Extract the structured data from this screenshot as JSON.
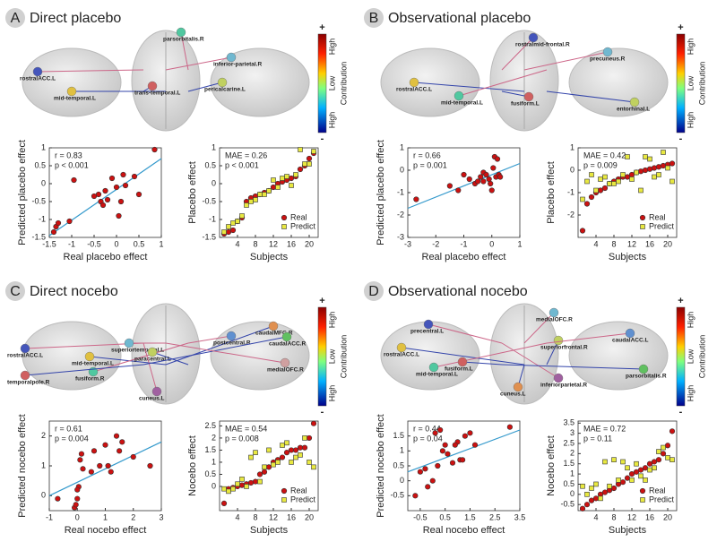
{
  "panels": [
    {
      "letter": "A",
      "title": "Direct placebo",
      "regions": [
        "rostralACC.L",
        "mid-temporal.L",
        "parsorbitalis.R",
        "trans-temporal.L",
        "inferior-parietal.R",
        "pericalcarine.L"
      ],
      "colorbar": {
        "plus": "+",
        "top": "High",
        "middle": "Low",
        "bottom": "High",
        "minus": "-",
        "label": "Contribution"
      }
    },
    {
      "letter": "B",
      "title": "Observational placebo",
      "regions": [
        "rostralmid-frontal.R",
        "rostralACC.L",
        "mid-temporal.L",
        "fusiform.L",
        "precuneus.R",
        "entorhinal.L"
      ],
      "colorbar": {
        "plus": "+",
        "top": "High",
        "middle": "Low",
        "bottom": "High",
        "minus": "-",
        "label": "Contribution"
      }
    },
    {
      "letter": "C",
      "title": "Direct nocebo",
      "regions": [
        "rostralACC.L",
        "mid-temporal.L",
        "fusiform.R",
        "temporalpole.R",
        "superiortemporal.L",
        "paracentral.L",
        "cuneus.L",
        "caudalMFG.R",
        "postcentral.R",
        "caudalACC.R",
        "medialOFC.R"
      ],
      "colorbar": {
        "plus": "+",
        "top": "High",
        "middle": "Low",
        "bottom": "High",
        "minus": "-",
        "label": "Contribution"
      }
    },
    {
      "letter": "D",
      "title": "Observational nocebo",
      "regions": [
        "precentral.L",
        "rostralACC.L",
        "mid-temporal.L",
        "fusiform.L",
        "medialOFC.R",
        "superiorfrontal.R",
        "inferiorparietal.R",
        "cuneus.L",
        "caudalACC.L",
        "parsorbitalis.R"
      ],
      "colorbar": {
        "plus": "+",
        "top": "High",
        "middle": "Low",
        "bottom": "High",
        "minus": "-",
        "label": "Contribution"
      }
    }
  ],
  "chart_data": [
    {
      "type": "scatter",
      "xlabel": "Real placebo effect",
      "ylabel": "Predicted placebo effect",
      "annotations": [
        "r = 0.83",
        "p < 0.001"
      ],
      "x": [
        -1.4,
        -1.35,
        -1.3,
        -1.05,
        -0.95,
        -0.5,
        -0.4,
        -0.35,
        -0.3,
        -0.25,
        -0.2,
        -0.1,
        0,
        0.05,
        0.1,
        0.15,
        0.2,
        0.4,
        0.5,
        0.85
      ],
      "series": [
        {
          "color": "#cc1111",
          "marker": "circle",
          "values": [
            -1.35,
            -1.2,
            -1.1,
            -1.05,
            0.1,
            -0.35,
            -0.3,
            -0.5,
            -0.6,
            -0.2,
            -0.45,
            0.15,
            -0.1,
            -0.9,
            -0.5,
            0.25,
            -0.05,
            0.2,
            -0.3,
            0.95
          ]
        }
      ],
      "fit_line": {
        "color": "#3399cc",
        "x": [
          -1.5,
          1
        ],
        "values": [
          -1.45,
          0.7
        ]
      },
      "xlim": [
        -1.5,
        1
      ],
      "xticks": [
        -1.5,
        -1,
        -0.5,
        0,
        0.5,
        1
      ],
      "ylim": [
        -1.5,
        1
      ],
      "yticks": [
        -1.5,
        -1,
        -0.5,
        0,
        0.5,
        1
      ]
    },
    {
      "type": "scatter",
      "xlabel": "Subjects",
      "ylabel": "Placebo effect",
      "annotations": [
        "MAE = 0.26",
        "p < 0.001"
      ],
      "legend": "lower right",
      "x": [
        1,
        2,
        3,
        4,
        5,
        6,
        7,
        8,
        9,
        10,
        11,
        12,
        13,
        14,
        15,
        16,
        17,
        18,
        19,
        20,
        21
      ],
      "series": [
        {
          "name": "Real",
          "color": "#cc1111",
          "marker": "circle",
          "values": [
            -1.4,
            -1.35,
            -1.3,
            -1.05,
            -0.95,
            -0.5,
            -0.4,
            -0.35,
            -0.3,
            -0.25,
            -0.2,
            -0.1,
            0,
            0.05,
            0.1,
            0.15,
            0.2,
            0.4,
            0.5,
            0.7,
            0.85
          ]
        },
        {
          "name": "Predict",
          "color": "#e8e840",
          "marker": "square",
          "values": [
            -1.35,
            -1.2,
            -1.1,
            -1.05,
            -0.9,
            -0.6,
            -0.5,
            -0.45,
            -0.3,
            -0.3,
            -0.2,
            0.1,
            -0.1,
            0.15,
            0.2,
            -0.05,
            0.25,
            0.95,
            0.55,
            0.55,
            0.9
          ]
        }
      ],
      "xlim": [
        0,
        22
      ],
      "xticks": [
        4,
        8,
        12,
        16,
        20
      ],
      "ylim": [
        -1.5,
        1
      ],
      "yticks": [
        -1.5,
        -1,
        -0.5,
        0,
        0.5,
        1
      ]
    },
    {
      "type": "scatter",
      "xlabel": "Real placebo effect",
      "ylabel": "Predicted placebo effect",
      "annotations": [
        "r = 0.66",
        "p = 0.001"
      ],
      "x": [
        -2.7,
        -1.5,
        -1.2,
        -1,
        -0.8,
        -0.6,
        -0.5,
        -0.4,
        -0.3,
        -0.2,
        -0.1,
        0,
        0.1,
        0.15,
        0.2,
        0.25,
        -0.3,
        0.05,
        -0.05,
        0.3
      ],
      "series": [
        {
          "color": "#cc1111",
          "marker": "circle",
          "values": [
            -1.3,
            -0.7,
            -0.9,
            -0.2,
            -0.4,
            -0.6,
            -0.5,
            -0.3,
            -0.1,
            -0.2,
            -0.4,
            -0.9,
            0.6,
            -0.3,
            0.5,
            -0.2,
            -0.5,
            0.1,
            -0.6,
            -0.3
          ]
        }
      ],
      "fit_line": {
        "color": "#3399cc",
        "x": [
          -3,
          1
        ],
        "values": [
          -1.7,
          0.3
        ]
      },
      "xlim": [
        -3,
        1
      ],
      "xticks": [
        -3,
        -2,
        -1,
        0,
        1
      ],
      "ylim": [
        -3,
        1
      ],
      "yticks": [
        -3,
        -2,
        -1,
        0,
        1
      ]
    },
    {
      "type": "scatter",
      "xlabel": "Subjects",
      "ylabel": "Placebo effect",
      "annotations": [
        "MAE = 0.42",
        "p = 0.009"
      ],
      "legend": "lower right",
      "x": [
        1,
        2,
        3,
        4,
        5,
        6,
        7,
        8,
        9,
        10,
        11,
        12,
        13,
        14,
        15,
        16,
        17,
        18,
        19,
        20,
        21
      ],
      "series": [
        {
          "name": "Real",
          "color": "#cc1111",
          "marker": "circle",
          "values": [
            -2.7,
            -1.5,
            -1.2,
            -1,
            -0.9,
            -0.8,
            -0.6,
            -0.5,
            -0.4,
            -0.3,
            -0.3,
            -0.2,
            -0.1,
            -0.05,
            0,
            0.05,
            0.1,
            0.15,
            0.2,
            0.25,
            0.3
          ]
        },
        {
          "name": "Predict",
          "color": "#e8e840",
          "marker": "square",
          "values": [
            -1.3,
            -0.5,
            -0.2,
            -0.9,
            -0.4,
            -0.3,
            -0.6,
            -0.6,
            -0.5,
            -0.2,
            0.6,
            -0.4,
            -0.1,
            -0.9,
            0.6,
            0.5,
            -0.3,
            -0.2,
            0.8,
            0.1,
            -0.5
          ]
        }
      ],
      "xlim": [
        0,
        22
      ],
      "xticks": [
        4,
        8,
        12,
        16,
        20
      ],
      "ylim": [
        -3,
        1
      ],
      "yticks": [
        -2,
        -1,
        0,
        1
      ]
    },
    {
      "type": "scatter",
      "xlabel": "Real nocebo effect",
      "ylabel": "Predicted nocebo effect",
      "annotations": [
        "r = 0.61",
        "p = 0.004"
      ],
      "x": [
        -0.7,
        -0.1,
        -0.05,
        0,
        0.05,
        0.1,
        0.15,
        0,
        0.2,
        0.5,
        0.6,
        0.8,
        1,
        1.1,
        1.2,
        1.4,
        1.5,
        1.6,
        2,
        2.6
      ],
      "series": [
        {
          "color": "#cc1111",
          "marker": "circle",
          "values": [
            -0.1,
            -0.4,
            -0.3,
            -0.1,
            0.3,
            1.2,
            1.4,
            0.2,
            0.9,
            0.8,
            1.5,
            1,
            1.7,
            1,
            0.8,
            2,
            1.5,
            1.8,
            1.3,
            1
          ]
        }
      ],
      "fit_line": {
        "color": "#3399cc",
        "x": [
          -1,
          3
        ],
        "values": [
          0,
          1.8
        ]
      },
      "xlim": [
        -1,
        3
      ],
      "xticks": [
        -1,
        0,
        1,
        2,
        3
      ],
      "ylim": [
        -0.5,
        2.5
      ],
      "yticks": [
        0,
        1,
        2
      ]
    },
    {
      "type": "scatter",
      "xlabel": "Subjects",
      "ylabel": "Nocebo effect",
      "annotations": [
        "MAE = 0.54",
        "p = 0.008"
      ],
      "legend": "lower right",
      "x": [
        1,
        2,
        3,
        4,
        5,
        6,
        7,
        8,
        9,
        10,
        11,
        12,
        13,
        14,
        15,
        16,
        17,
        18,
        19,
        20,
        21
      ],
      "series": [
        {
          "name": "Real",
          "color": "#cc1111",
          "marker": "circle",
          "values": [
            -0.7,
            -0.1,
            -0.05,
            0,
            0.05,
            0.1,
            0.15,
            0.2,
            0.5,
            0.6,
            0.8,
            1,
            1.1,
            1.2,
            1.4,
            1.5,
            1.5,
            1.6,
            1.6,
            2,
            2.6
          ]
        },
        {
          "name": "Predict",
          "color": "#e8e840",
          "marker": "square",
          "values": [
            -0.1,
            -0.2,
            -0.1,
            0.1,
            0.3,
            0,
            1.2,
            1.4,
            0.2,
            0.8,
            1.5,
            0.9,
            1,
            1.7,
            1.8,
            1,
            1.2,
            1.3,
            2,
            1,
            0.8
          ]
        }
      ],
      "xlim": [
        0,
        22
      ],
      "xticks": [
        4,
        8,
        12,
        16,
        20
      ],
      "ylim": [
        -1,
        2.7
      ],
      "yticks": [
        0,
        0.5,
        1,
        1.5,
        2,
        2.5
      ]
    },
    {
      "type": "scatter",
      "xlabel": "Real nocebo effect",
      "ylabel": "Predicted nocebo effect",
      "annotations": [
        "r = 0.44",
        "p = 0.04"
      ],
      "x": [
        -0.7,
        -0.5,
        -0.3,
        -0.2,
        0,
        0.1,
        0.2,
        0.3,
        0.5,
        0.6,
        0.8,
        1,
        1.1,
        1.3,
        1.5,
        1.7,
        3.1,
        0.4,
        1.2,
        0.9
      ],
      "series": [
        {
          "color": "#cc1111",
          "marker": "circle",
          "values": [
            -0.5,
            0.3,
            0.4,
            -0.2,
            0,
            1.6,
            0.5,
            1.7,
            1.2,
            0.9,
            0.6,
            1.3,
            0.7,
            1.5,
            1.6,
            1.2,
            1.8,
            1,
            0.7,
            1.2
          ]
        }
      ],
      "fit_line": {
        "color": "#3399cc",
        "x": [
          -1,
          3.5
        ],
        "values": [
          0.3,
          1.7
        ]
      },
      "xlim": [
        -1,
        3.5
      ],
      "xticks": [
        -0.5,
        0.5,
        1.5,
        2.5,
        3.5
      ],
      "ylim": [
        -1,
        2
      ],
      "yticks": [
        -0.5,
        0,
        0.5,
        1,
        1.5
      ]
    },
    {
      "type": "scatter",
      "xlabel": "Subjects",
      "ylabel": "Nocebo effect",
      "annotations": [
        "MAE = 0.72",
        "p = 0.11"
      ],
      "legend": "lower right",
      "x": [
        1,
        2,
        3,
        4,
        5,
        6,
        7,
        8,
        9,
        10,
        11,
        12,
        13,
        14,
        15,
        16,
        17,
        18,
        19,
        20,
        21
      ],
      "series": [
        {
          "name": "Real",
          "color": "#cc1111",
          "marker": "circle",
          "values": [
            -0.7,
            -0.5,
            -0.3,
            -0.2,
            0,
            0.1,
            0.2,
            0.3,
            0.5,
            0.6,
            0.8,
            1,
            1.1,
            1.2,
            1.3,
            1.5,
            1.6,
            1.7,
            2,
            2.4,
            3.1
          ]
        },
        {
          "name": "Predict",
          "color": "#e8e840",
          "marker": "square",
          "values": [
            0.4,
            0,
            0.3,
            0.5,
            -0.2,
            1.6,
            0.4,
            1.7,
            0.7,
            1.6,
            1.3,
            0.7,
            1.5,
            0.9,
            0.7,
            1.2,
            1.3,
            2.1,
            2.3,
            1.8,
            1.7
          ]
        }
      ],
      "xlim": [
        0,
        22
      ],
      "xticks": [
        4,
        8,
        12,
        16,
        20
      ],
      "ylim": [
        -0.8,
        3.6
      ],
      "yticks": [
        -0.5,
        0,
        0.5,
        1,
        1.5,
        2,
        2.5,
        3,
        3.5
      ]
    }
  ]
}
